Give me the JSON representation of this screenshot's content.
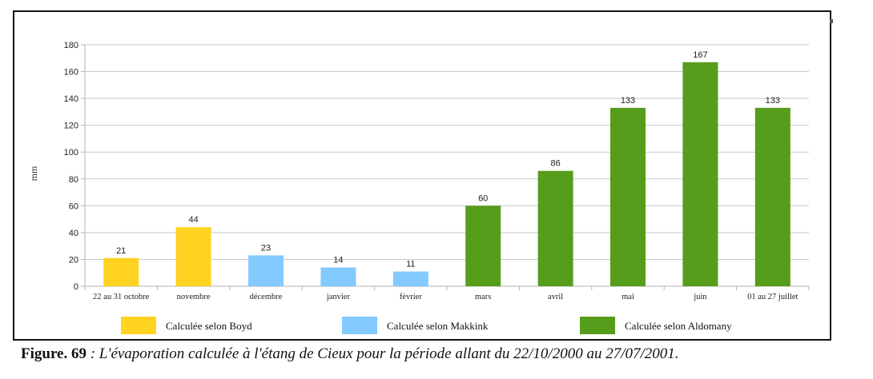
{
  "chart_data": {
    "type": "bar",
    "title": "",
    "ylabel": "mm",
    "xlabel": "",
    "ylim": [
      0,
      180
    ],
    "yticks": [
      0,
      20,
      40,
      60,
      80,
      100,
      120,
      140,
      160,
      180
    ],
    "grid": true,
    "legend_position": "bottom",
    "categories": [
      "22 au 31 octobre",
      "novembre",
      "décembre",
      "janvier",
      "février",
      "mars",
      "avril",
      "mai",
      "juin",
      "01 au 27 juillet"
    ],
    "values": [
      21,
      44,
      23,
      14,
      11,
      60,
      86,
      133,
      167,
      133
    ],
    "series_index": [
      0,
      0,
      1,
      1,
      1,
      2,
      2,
      2,
      2,
      2
    ],
    "series": [
      {
        "name": "Calculée selon Boyd",
        "color": "#ffd320"
      },
      {
        "name": "Calculée selon Makkink",
        "color": "#83caff"
      },
      {
        "name": "Calculée selon Aldomany",
        "color": "#579d1c"
      }
    ]
  },
  "caption": {
    "label": "Figure. 69",
    "text": " : L'évaporation calculée à l'étang de Cieux pour la période allant du 22/10/2000 au 27/07/2001."
  }
}
